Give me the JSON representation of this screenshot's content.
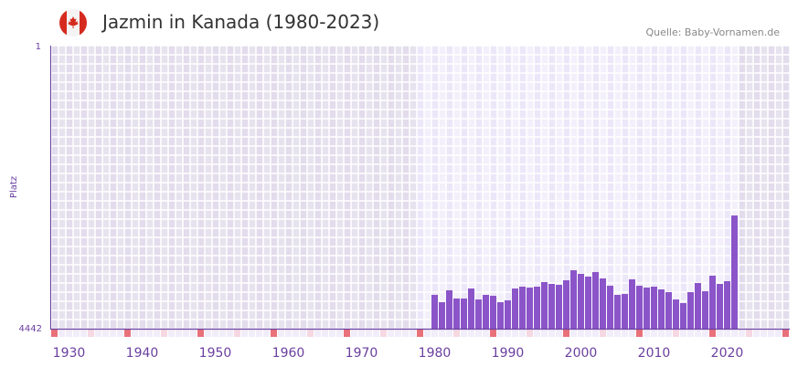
{
  "header": {
    "title": "Jazmin in Kanada (1980-2023)",
    "source": "Quelle: Baby-Vornamen.de",
    "flag_icon": "canada-flag-icon"
  },
  "colors": {
    "bar": "#8b55c9",
    "axis": "#6a3fa0",
    "bg_outside": "#e4dfee",
    "bg_inside": "#f1eefa",
    "decade_marker": "#e8717a",
    "half_decade_marker": "#f5d8e2"
  },
  "chart_data": {
    "type": "bar",
    "title": "Jazmin in Kanada (1980-2023)",
    "xlabel": "",
    "ylabel": "Platz",
    "y_inverted": true,
    "ylim": [
      4442,
      1
    ],
    "y_ticks": [
      "1",
      "4442"
    ],
    "xlim": [
      1928,
      2028
    ],
    "x_ticks": [
      "1930",
      "1940",
      "1950",
      "1960",
      "1970",
      "1980",
      "1990",
      "2000",
      "2010",
      "2020"
    ],
    "highlight_range": [
      1978,
      2021
    ],
    "grid": true,
    "x": [
      1980,
      1981,
      1982,
      1983,
      1984,
      1985,
      1986,
      1987,
      1988,
      1989,
      1990,
      1991,
      1992,
      1993,
      1994,
      1995,
      1996,
      1997,
      1998,
      1999,
      2000,
      2001,
      2002,
      2003,
      2004,
      2005,
      2006,
      2007,
      2008,
      2009,
      2010,
      2011,
      2012,
      2013,
      2014,
      2015,
      2016,
      2017,
      2018,
      2019,
      2020,
      2021
    ],
    "values": [
      3912,
      4027,
      3840,
      3969,
      3969,
      3812,
      3984,
      3912,
      3926,
      4027,
      3998,
      3812,
      3783,
      3797,
      3783,
      3711,
      3740,
      3754,
      3683,
      3525,
      3582,
      3625,
      3554,
      3654,
      3769,
      3912,
      3898,
      3668,
      3769,
      3797,
      3783,
      3826,
      3869,
      3984,
      4041,
      3869,
      3726,
      3855,
      3611,
      3740,
      3697,
      2666
    ]
  }
}
